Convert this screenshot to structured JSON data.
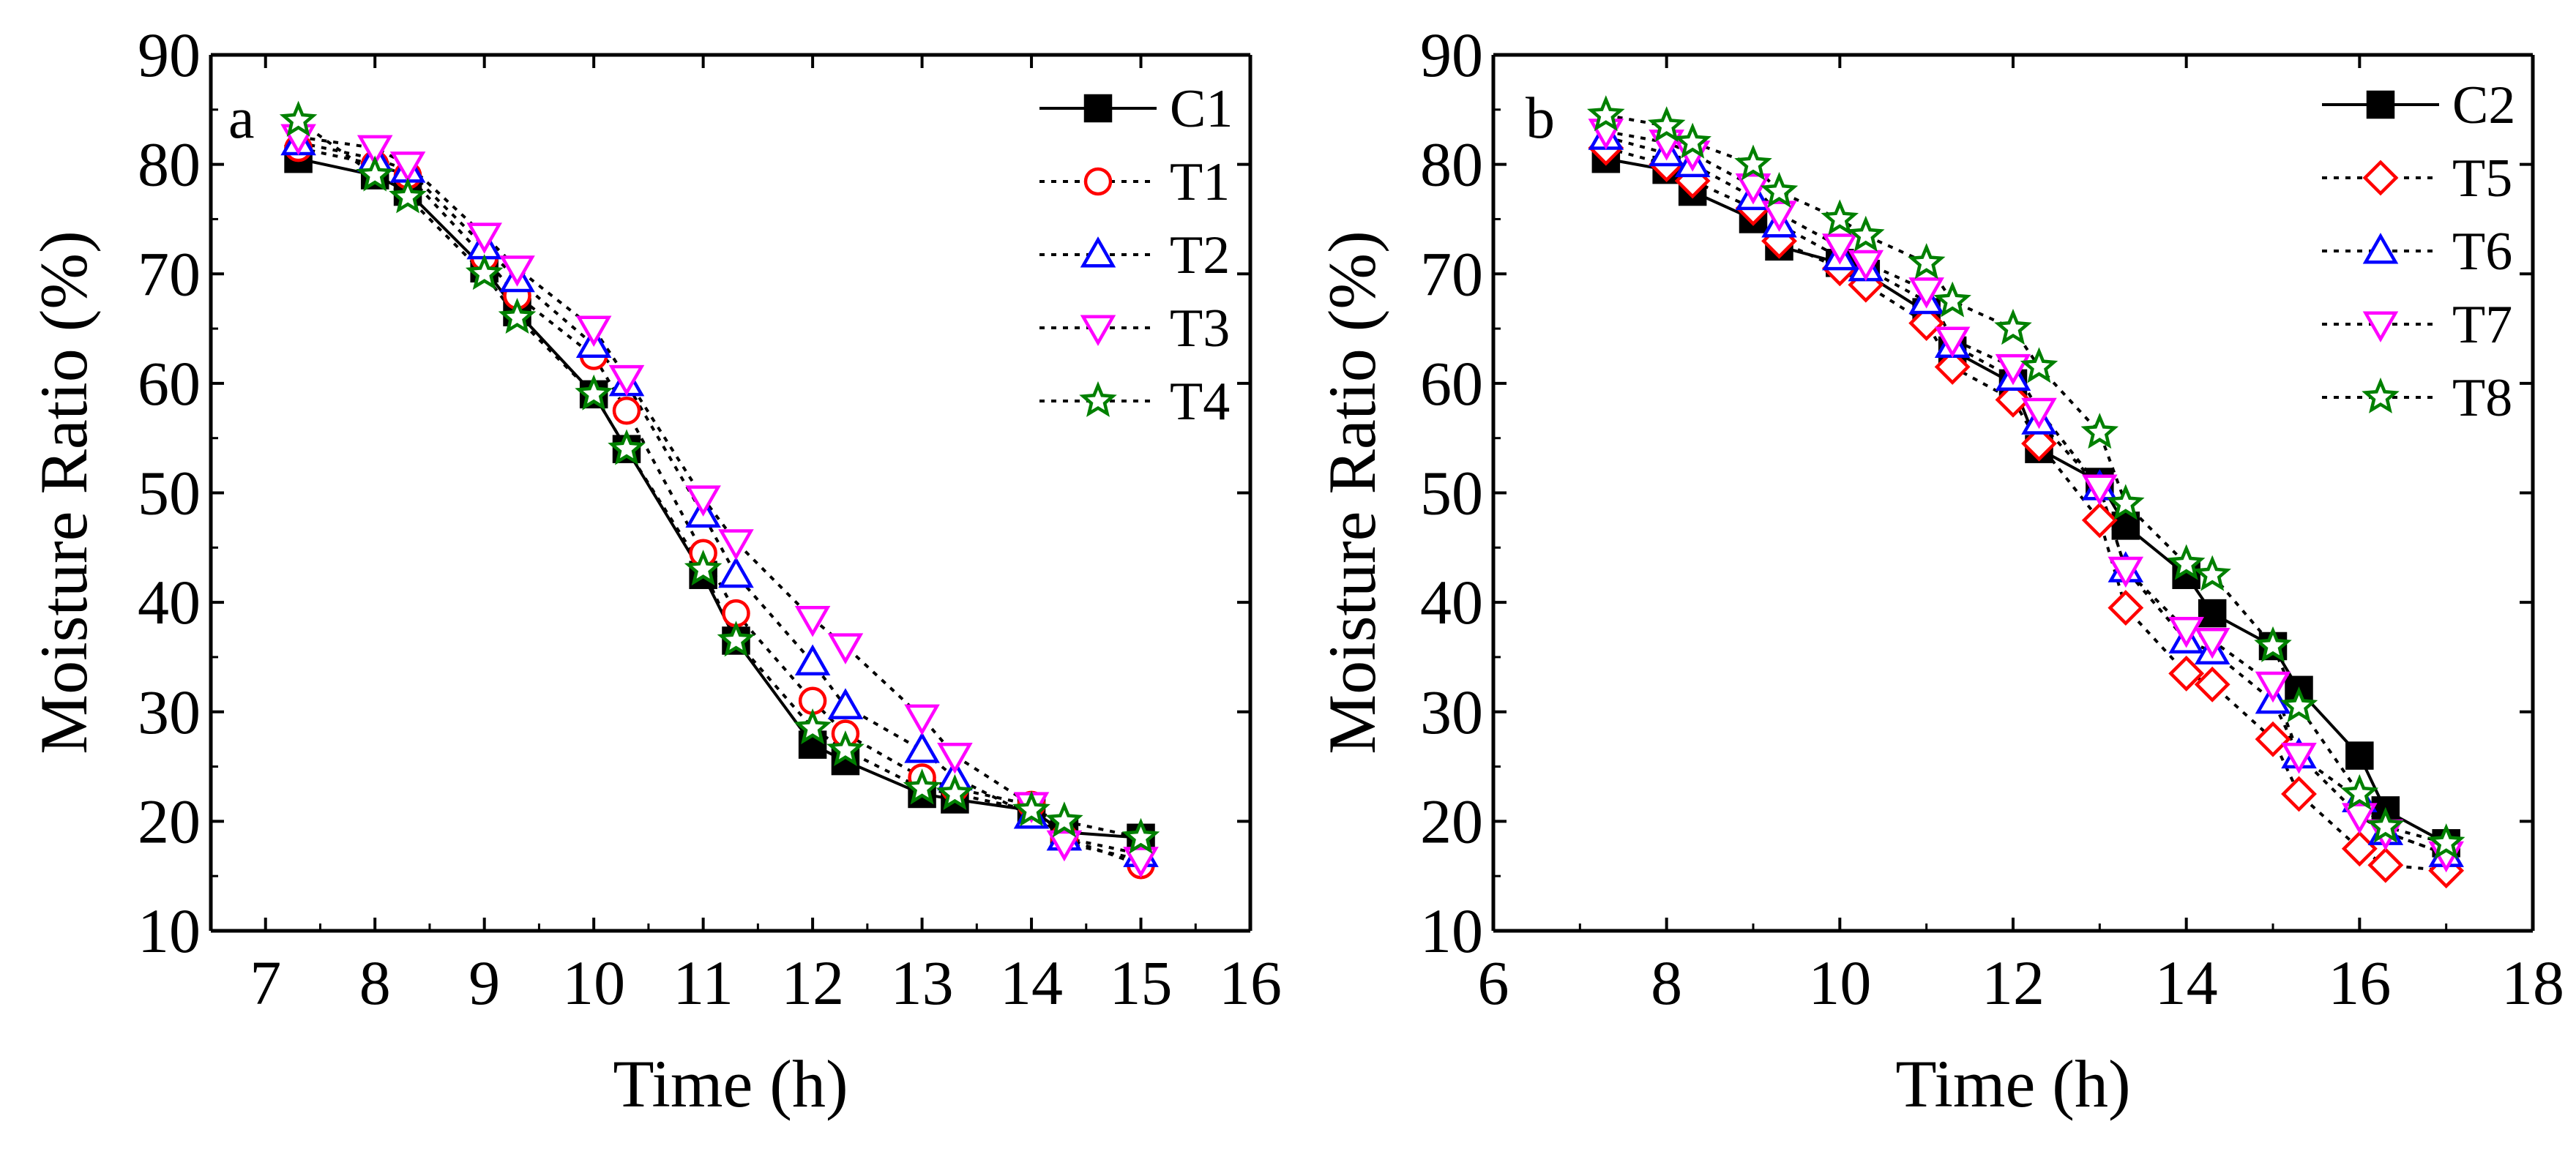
{
  "chart_data": [
    {
      "type": "line",
      "panel_label": "a",
      "xlabel": "Time (h)",
      "ylabel": "Moisture Ratio (%)",
      "xlim": [
        6.5,
        16
      ],
      "ylim": [
        10,
        90
      ],
      "xticks": [
        7,
        8,
        9,
        10,
        11,
        12,
        13,
        14,
        15,
        16
      ],
      "yticks": [
        10,
        20,
        30,
        40,
        50,
        60,
        70,
        80,
        90
      ],
      "legend_position": "top-right",
      "series": [
        {
          "name": "C1",
          "color": "#000000",
          "marker": "square",
          "marker_fill": "filled",
          "line": "solid",
          "x": [
            7.3,
            8,
            8.3,
            9,
            9.3,
            10,
            10.3,
            11,
            11.3,
            12,
            12.3,
            13,
            13.3,
            14,
            14.3,
            15
          ],
          "y": [
            80.5,
            79,
            77.5,
            70.5,
            66.5,
            59,
            54,
            42.5,
            36.5,
            27,
            25.5,
            22.5,
            22,
            21,
            19,
            18.5
          ]
        },
        {
          "name": "T1",
          "color": "#ff0000",
          "marker": "circle",
          "marker_fill": "open",
          "line": "dotted",
          "x": [
            7.3,
            8,
            8.3,
            9,
            9.3,
            10,
            10.3,
            11,
            11.3,
            12,
            12.3,
            13,
            13.3,
            14,
            14.3,
            15
          ],
          "y": [
            81.5,
            80,
            79,
            71.5,
            68,
            62.5,
            57.5,
            44.5,
            39,
            31,
            28,
            24,
            23,
            21.5,
            18.5,
            16
          ]
        },
        {
          "name": "T2",
          "color": "#0000ff",
          "marker": "triangle-up",
          "marker_fill": "open",
          "line": "dotted",
          "x": [
            7.3,
            8,
            8.3,
            9,
            9.3,
            10,
            10.3,
            11,
            11.3,
            12,
            12.3,
            13,
            13.3,
            14,
            14.3,
            15
          ],
          "y": [
            82,
            80.5,
            79.5,
            72.5,
            69.5,
            63.5,
            60,
            48,
            42.5,
            34.5,
            30.5,
            26.5,
            24,
            20.5,
            18.5,
            17
          ]
        },
        {
          "name": "T3",
          "color": "#ff00ff",
          "marker": "triangle-down",
          "marker_fill": "open",
          "line": "dotted",
          "x": [
            7.3,
            8,
            8.3,
            9,
            9.3,
            10,
            10.3,
            11,
            11.3,
            12,
            12.3,
            13,
            13.3,
            14,
            14.3,
            15
          ],
          "y": [
            82.5,
            81.5,
            80,
            73.5,
            70.5,
            65,
            60.5,
            49.5,
            45.5,
            38.5,
            36,
            29.5,
            26,
            21.5,
            18,
            16.5
          ]
        },
        {
          "name": "T4",
          "color": "#008000",
          "marker": "star",
          "marker_fill": "open",
          "line": "dotted",
          "x": [
            7.3,
            8,
            8.3,
            9,
            9.3,
            10,
            10.3,
            11,
            11.3,
            12,
            12.3,
            13,
            13.3,
            14,
            14.3,
            15
          ],
          "y": [
            84,
            79,
            77,
            70,
            66,
            59,
            54,
            43,
            36.5,
            28.5,
            26.5,
            23,
            22.5,
            21,
            20,
            18.5
          ]
        }
      ]
    },
    {
      "type": "line",
      "panel_label": "b",
      "xlabel": "Time (h)",
      "ylabel": "Moisture Ratio (%)",
      "xlim": [
        6,
        18
      ],
      "ylim": [
        10,
        90
      ],
      "xticks": [
        6,
        8,
        10,
        12,
        14,
        16,
        18
      ],
      "yticks": [
        10,
        20,
        30,
        40,
        50,
        60,
        70,
        80,
        90
      ],
      "legend_position": "top-right",
      "series": [
        {
          "name": "C2",
          "color": "#000000",
          "marker": "square",
          "marker_fill": "filled",
          "line": "solid",
          "x": [
            7.3,
            8,
            8.3,
            9,
            9.3,
            10,
            10.3,
            11,
            11.3,
            12,
            12.3,
            13,
            13.3,
            14,
            14.3,
            15,
            15.3,
            16,
            16.3,
            17
          ],
          "y": [
            80.5,
            79.5,
            77.5,
            75,
            72.5,
            71,
            70,
            66.5,
            63,
            60,
            54,
            51,
            47,
            42.5,
            39,
            36,
            32,
            26,
            21,
            18
          ]
        },
        {
          "name": "T5",
          "color": "#ff0000",
          "marker": "diamond",
          "marker_fill": "open",
          "line": "dotted",
          "x": [
            7.3,
            8,
            8.3,
            9,
            9.3,
            10,
            10.3,
            11,
            11.3,
            12,
            12.3,
            13,
            13.3,
            14,
            14.3,
            15,
            15.3,
            16,
            16.3,
            17
          ],
          "y": [
            81.5,
            80,
            78.5,
            76,
            73,
            70.5,
            69,
            65.5,
            61.5,
            58.5,
            54.5,
            47.5,
            39.5,
            33.5,
            32.5,
            27.5,
            22.5,
            17.5,
            16,
            15.5
          ]
        },
        {
          "name": "T6",
          "color": "#0000ff",
          "marker": "triangle-up",
          "marker_fill": "open",
          "line": "dotted",
          "x": [
            7.3,
            8,
            8.3,
            9,
            9.3,
            10,
            10.3,
            11,
            11.3,
            12,
            12.3,
            13,
            13.3,
            14,
            14.3,
            15,
            15.3,
            16,
            16.3,
            17
          ],
          "y": [
            82.5,
            81,
            80,
            77,
            74.5,
            71.5,
            70.5,
            67.5,
            63.5,
            60.5,
            56.5,
            50.5,
            43,
            36.5,
            35.5,
            31,
            26,
            22,
            19,
            17
          ]
        },
        {
          "name": "T7",
          "color": "#ff00ff",
          "marker": "triangle-down",
          "marker_fill": "open",
          "line": "dotted",
          "x": [
            7.3,
            8,
            8.3,
            9,
            9.3,
            10,
            10.3,
            11,
            11.3,
            12,
            12.3,
            13,
            13.3,
            14,
            14.3,
            15,
            15.3,
            16,
            16.3,
            17
          ],
          "y": [
            83,
            82,
            81,
            78,
            75.5,
            72.5,
            71,
            68.5,
            64,
            61.5,
            57.5,
            50.5,
            43,
            37.5,
            36.5,
            32.5,
            26,
            20.5,
            19,
            17
          ]
        },
        {
          "name": "T8",
          "color": "#008000",
          "marker": "star",
          "marker_fill": "open",
          "line": "dotted",
          "x": [
            7.3,
            8,
            8.3,
            9,
            9.3,
            10,
            10.3,
            11,
            11.3,
            12,
            12.3,
            13,
            13.3,
            14,
            14.3,
            15,
            15.3,
            16,
            16.3,
            17
          ],
          "y": [
            84.5,
            83.5,
            82,
            80,
            77.5,
            75,
            73.5,
            71,
            67.5,
            65,
            61.5,
            55.5,
            49,
            43.5,
            42.5,
            36,
            30.5,
            22.5,
            19.5,
            18
          ]
        }
      ]
    }
  ]
}
